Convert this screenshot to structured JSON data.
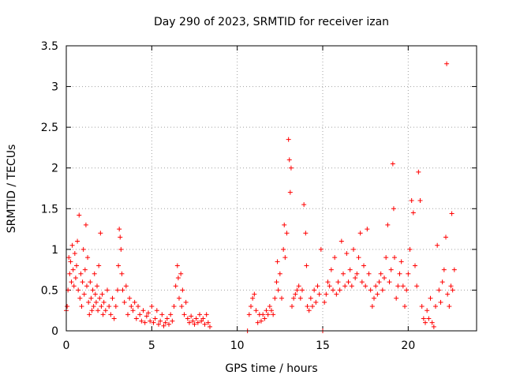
{
  "chart_data": {
    "type": "scatter",
    "title": "Day 290 of 2023, SRMTID for receiver izan",
    "xlabel": "GPS time / hours",
    "ylabel": "SRMTID / TECUs",
    "xlim": [
      0,
      24
    ],
    "ylim": [
      0,
      3.5
    ],
    "xticks": [
      "0",
      "5",
      "10",
      "15",
      "20"
    ],
    "yticks": [
      "0",
      "0.5",
      "1",
      "1.5",
      "2",
      "2.5",
      "3",
      "3.5"
    ],
    "grid": true,
    "marker": "plus",
    "series_color": "#ff0000",
    "series": [
      {
        "name": "SRMTID",
        "points": [
          [
            0.0,
            0.25
          ],
          [
            0.05,
            0.3
          ],
          [
            0.1,
            0.5
          ],
          [
            0.15,
            0.9
          ],
          [
            0.2,
            0.7
          ],
          [
            0.25,
            0.85
          ],
          [
            0.3,
            0.6
          ],
          [
            0.35,
            1.05
          ],
          [
            0.4,
            0.75
          ],
          [
            0.45,
            0.55
          ],
          [
            0.5,
            0.95
          ],
          [
            0.55,
            0.65
          ],
          [
            0.6,
            0.8
          ],
          [
            0.65,
            1.1
          ],
          [
            0.7,
            0.5
          ],
          [
            0.75,
            1.42
          ],
          [
            0.8,
            0.4
          ],
          [
            0.85,
            0.7
          ],
          [
            0.9,
            0.3
          ],
          [
            0.95,
            0.6
          ],
          [
            1.0,
            1.0
          ],
          [
            1.05,
            0.45
          ],
          [
            1.1,
            0.75
          ],
          [
            1.15,
            1.3
          ],
          [
            1.2,
            0.55
          ],
          [
            1.25,
            0.9
          ],
          [
            1.3,
            0.35
          ],
          [
            1.35,
            0.2
          ],
          [
            1.4,
            0.6
          ],
          [
            1.45,
            0.4
          ],
          [
            1.5,
            0.25
          ],
          [
            1.55,
            0.5
          ],
          [
            1.6,
            0.3
          ],
          [
            1.65,
            0.7
          ],
          [
            1.7,
            0.45
          ],
          [
            1.75,
            0.35
          ],
          [
            1.8,
            0.55
          ],
          [
            1.85,
            0.25
          ],
          [
            1.9,
            0.8
          ],
          [
            1.95,
            0.4
          ],
          [
            2.0,
            1.2
          ],
          [
            2.05,
            0.3
          ],
          [
            2.1,
            0.45
          ],
          [
            2.15,
            0.2
          ],
          [
            2.2,
            0.35
          ],
          [
            2.3,
            0.25
          ],
          [
            2.4,
            0.5
          ],
          [
            2.5,
            0.3
          ],
          [
            2.6,
            0.2
          ],
          [
            2.7,
            0.4
          ],
          [
            2.8,
            0.15
          ],
          [
            2.9,
            0.3
          ],
          [
            3.0,
            0.5
          ],
          [
            3.05,
            0.8
          ],
          [
            3.1,
            1.25
          ],
          [
            3.15,
            1.15
          ],
          [
            3.2,
            1.0
          ],
          [
            3.25,
            0.7
          ],
          [
            3.3,
            0.5
          ],
          [
            3.4,
            0.35
          ],
          [
            3.5,
            0.55
          ],
          [
            3.6,
            0.2
          ],
          [
            3.7,
            0.4
          ],
          [
            3.8,
            0.3
          ],
          [
            3.9,
            0.25
          ],
          [
            4.0,
            0.35
          ],
          [
            4.1,
            0.15
          ],
          [
            4.2,
            0.3
          ],
          [
            4.3,
            0.2
          ],
          [
            4.4,
            0.12
          ],
          [
            4.5,
            0.25
          ],
          [
            4.6,
            0.1
          ],
          [
            4.7,
            0.18
          ],
          [
            4.8,
            0.22
          ],
          [
            4.9,
            0.12
          ],
          [
            5.0,
            0.3
          ],
          [
            5.1,
            0.1
          ],
          [
            5.2,
            0.15
          ],
          [
            5.3,
            0.25
          ],
          [
            5.4,
            0.08
          ],
          [
            5.5,
            0.12
          ],
          [
            5.6,
            0.2
          ],
          [
            5.7,
            0.06
          ],
          [
            5.8,
            0.1
          ],
          [
            5.9,
            0.15
          ],
          [
            6.0,
            0.08
          ],
          [
            6.1,
            0.2
          ],
          [
            6.2,
            0.12
          ],
          [
            6.3,
            0.3
          ],
          [
            6.4,
            0.55
          ],
          [
            6.5,
            0.8
          ],
          [
            6.55,
            0.65
          ],
          [
            6.6,
            0.4
          ],
          [
            6.7,
            0.7
          ],
          [
            6.75,
            0.3
          ],
          [
            6.8,
            0.5
          ],
          [
            6.9,
            0.2
          ],
          [
            7.0,
            0.35
          ],
          [
            7.1,
            0.15
          ],
          [
            7.2,
            0.1
          ],
          [
            7.3,
            0.18
          ],
          [
            7.4,
            0.12
          ],
          [
            7.5,
            0.08
          ],
          [
            7.6,
            0.15
          ],
          [
            7.7,
            0.1
          ],
          [
            7.8,
            0.2
          ],
          [
            7.9,
            0.12
          ],
          [
            8.0,
            0.15
          ],
          [
            8.1,
            0.08
          ],
          [
            8.2,
            0.2
          ],
          [
            8.3,
            0.1
          ],
          [
            8.4,
            0.05
          ],
          [
            10.6,
            0.0
          ],
          [
            10.7,
            0.2
          ],
          [
            10.8,
            0.3
          ],
          [
            10.9,
            0.4
          ],
          [
            11.0,
            0.45
          ],
          [
            11.1,
            0.25
          ],
          [
            11.2,
            0.1
          ],
          [
            11.3,
            0.2
          ],
          [
            11.4,
            0.12
          ],
          [
            11.5,
            0.2
          ],
          [
            11.6,
            0.15
          ],
          [
            11.7,
            0.25
          ],
          [
            11.8,
            0.2
          ],
          [
            11.9,
            0.3
          ],
          [
            12.0,
            0.25
          ],
          [
            12.1,
            0.2
          ],
          [
            12.2,
            0.4
          ],
          [
            12.3,
            0.6
          ],
          [
            12.35,
            0.85
          ],
          [
            12.4,
            0.5
          ],
          [
            12.5,
            0.7
          ],
          [
            12.6,
            0.4
          ],
          [
            12.7,
            1.0
          ],
          [
            12.75,
            1.3
          ],
          [
            12.8,
            0.9
          ],
          [
            12.9,
            1.2
          ],
          [
            13.0,
            2.35
          ],
          [
            13.05,
            2.1
          ],
          [
            13.1,
            1.7
          ],
          [
            13.15,
            2.0
          ],
          [
            13.2,
            0.3
          ],
          [
            13.3,
            0.4
          ],
          [
            13.4,
            0.45
          ],
          [
            13.5,
            0.5
          ],
          [
            13.6,
            0.55
          ],
          [
            13.7,
            0.4
          ],
          [
            13.8,
            0.5
          ],
          [
            13.9,
            1.55
          ],
          [
            14.0,
            1.2
          ],
          [
            14.05,
            0.8
          ],
          [
            14.1,
            0.3
          ],
          [
            14.2,
            0.25
          ],
          [
            14.3,
            0.4
          ],
          [
            14.4,
            0.3
          ],
          [
            14.5,
            0.5
          ],
          [
            14.6,
            0.35
          ],
          [
            14.7,
            0.55
          ],
          [
            14.8,
            0.45
          ],
          [
            14.9,
            1.0
          ],
          [
            15.0,
            0.0
          ],
          [
            15.1,
            0.35
          ],
          [
            15.2,
            0.45
          ],
          [
            15.3,
            0.6
          ],
          [
            15.4,
            0.55
          ],
          [
            15.5,
            0.75
          ],
          [
            15.6,
            0.5
          ],
          [
            15.7,
            0.9
          ],
          [
            15.8,
            0.45
          ],
          [
            15.9,
            0.6
          ],
          [
            16.0,
            0.5
          ],
          [
            16.1,
            1.1
          ],
          [
            16.2,
            0.7
          ],
          [
            16.3,
            0.55
          ],
          [
            16.4,
            0.95
          ],
          [
            16.5,
            0.6
          ],
          [
            16.6,
            0.75
          ],
          [
            16.7,
            0.55
          ],
          [
            16.8,
            1.0
          ],
          [
            16.9,
            0.65
          ],
          [
            17.0,
            0.7
          ],
          [
            17.1,
            0.9
          ],
          [
            17.2,
            1.2
          ],
          [
            17.3,
            0.6
          ],
          [
            17.4,
            0.8
          ],
          [
            17.5,
            0.55
          ],
          [
            17.6,
            1.25
          ],
          [
            17.7,
            0.7
          ],
          [
            17.8,
            0.5
          ],
          [
            17.9,
            0.3
          ],
          [
            18.0,
            0.4
          ],
          [
            18.1,
            0.55
          ],
          [
            18.2,
            0.45
          ],
          [
            18.3,
            0.6
          ],
          [
            18.4,
            0.7
          ],
          [
            18.5,
            0.5
          ],
          [
            18.6,
            0.65
          ],
          [
            18.7,
            0.9
          ],
          [
            18.8,
            1.3
          ],
          [
            18.9,
            0.6
          ],
          [
            19.0,
            0.75
          ],
          [
            19.1,
            2.05
          ],
          [
            19.15,
            1.5
          ],
          [
            19.2,
            0.9
          ],
          [
            19.3,
            0.4
          ],
          [
            19.4,
            0.55
          ],
          [
            19.5,
            0.7
          ],
          [
            19.6,
            0.85
          ],
          [
            19.7,
            0.55
          ],
          [
            19.8,
            0.3
          ],
          [
            19.9,
            0.5
          ],
          [
            20.0,
            0.7
          ],
          [
            20.1,
            1.0
          ],
          [
            20.2,
            1.6
          ],
          [
            20.3,
            1.45
          ],
          [
            20.4,
            0.8
          ],
          [
            20.5,
            0.55
          ],
          [
            20.6,
            1.95
          ],
          [
            20.7,
            1.6
          ],
          [
            20.8,
            0.3
          ],
          [
            20.9,
            0.15
          ],
          [
            21.0,
            0.1
          ],
          [
            21.1,
            0.25
          ],
          [
            21.2,
            0.15
          ],
          [
            21.3,
            0.4
          ],
          [
            21.4,
            0.1
          ],
          [
            21.5,
            0.05
          ],
          [
            21.6,
            0.3
          ],
          [
            21.7,
            1.05
          ],
          [
            21.8,
            0.5
          ],
          [
            21.9,
            0.35
          ],
          [
            22.0,
            0.6
          ],
          [
            22.1,
            0.75
          ],
          [
            22.2,
            1.15
          ],
          [
            22.25,
            3.28
          ],
          [
            22.3,
            0.45
          ],
          [
            22.4,
            0.3
          ],
          [
            22.5,
            0.55
          ],
          [
            22.55,
            1.44
          ],
          [
            22.6,
            0.5
          ],
          [
            22.7,
            0.75
          ]
        ]
      }
    ]
  }
}
